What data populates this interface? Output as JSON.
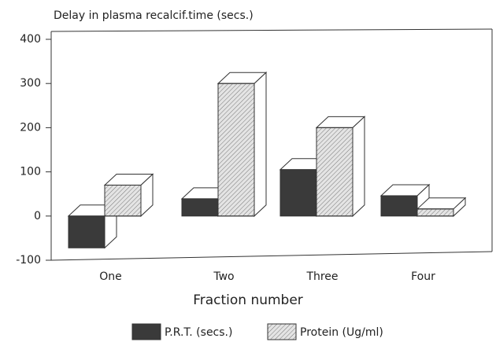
{
  "chart_data": {
    "type": "bar3d",
    "title": "Delay in plasma recalcif.time (secs.)",
    "x_label": "Fraction number",
    "categories": [
      "One",
      "Two",
      "Three",
      "Four"
    ],
    "series": [
      {
        "name": "P.R.T. (secs.)",
        "color": "#3a3a3a",
        "values": [
          -72,
          39,
          105,
          46
        ]
      },
      {
        "name": "Protein (Ug/ml)",
        "color": "#e4e4e4",
        "values": [
          70,
          300,
          200,
          16
        ]
      }
    ],
    "ylim": [
      -100,
      400
    ],
    "yticks": [
      -100,
      0,
      100,
      200,
      300,
      400
    ],
    "legend": "bottom"
  }
}
